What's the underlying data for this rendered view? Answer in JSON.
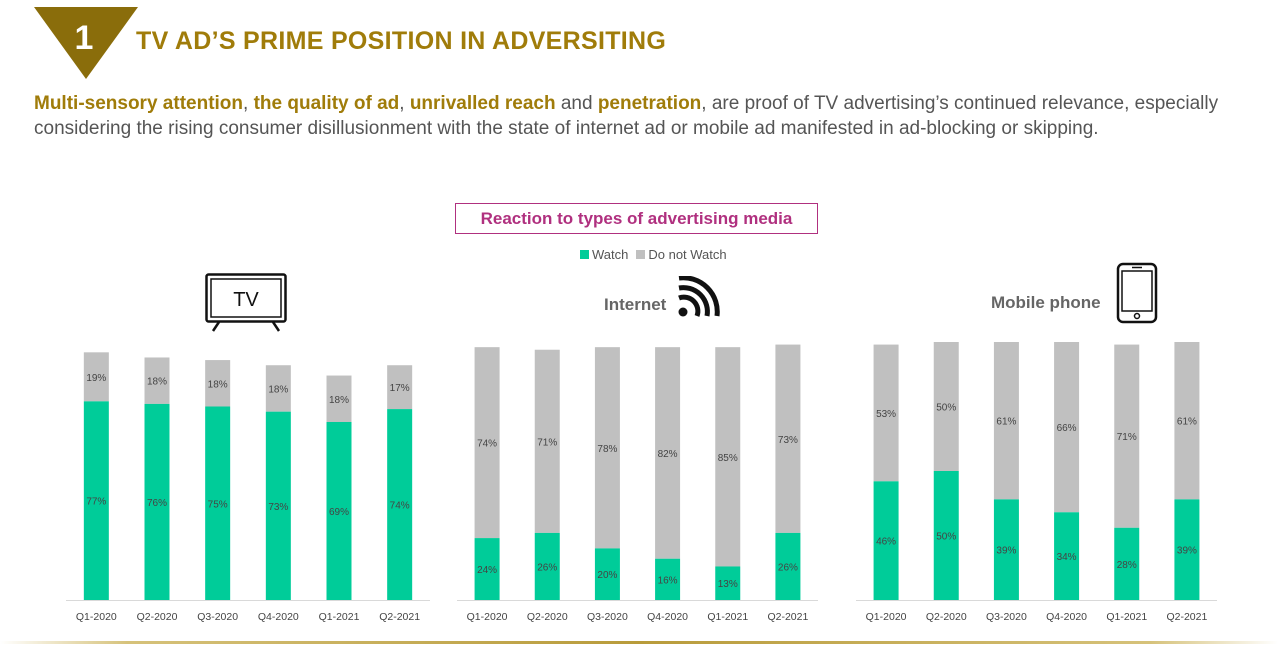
{
  "header": {
    "badge_number": "1",
    "title": "TV AD’S PRIME POSITION IN ADVERSITING"
  },
  "intro": {
    "h1": "Multi-sensory attention",
    "t1": ", ",
    "h2": "the quality of ad",
    "t2": ", ",
    "h3": "unrivalled reach",
    "t3": " and ",
    "h4": "penetration",
    "t4": ", are proof of TV advertising’s continued relevance, especially considering the rising consumer disillusionment with the state of internet ad or mobile ad manifested in ad-blocking or skipping."
  },
  "chart_title": "Reaction to types of advertising media",
  "legend": {
    "watch": "Watch",
    "not_watch": "Do not Watch"
  },
  "colors": {
    "watch": "#00cc99",
    "not_watch": "#c0c0c0",
    "accent": "#a07c0a",
    "title_border": "#b0307f"
  },
  "panels": {
    "tv": {
      "label": "TV",
      "icon": "tv-icon"
    },
    "internet": {
      "label": "Internet",
      "icon": "wifi-icon"
    },
    "mobile": {
      "label": "Mobile phone",
      "icon": "mobile-phone-icon"
    }
  },
  "chart_data": [
    {
      "type": "bar",
      "stacked": true,
      "panel": "TV",
      "categories": [
        "Q1-2020",
        "Q2-2020",
        "Q3-2020",
        "Q4-2020",
        "Q1-2021",
        "Q2-2021"
      ],
      "series": [
        {
          "name": "Watch",
          "values": [
            77,
            76,
            75,
            73,
            69,
            74
          ]
        },
        {
          "name": "Do not Watch",
          "values": [
            19,
            18,
            18,
            18,
            18,
            17
          ]
        }
      ],
      "ylim": [
        0,
        100
      ]
    },
    {
      "type": "bar",
      "stacked": true,
      "panel": "Internet",
      "categories": [
        "Q1-2020",
        "Q2-2020",
        "Q3-2020",
        "Q4-2020",
        "Q1-2021",
        "Q2-2021"
      ],
      "series": [
        {
          "name": "Watch",
          "values": [
            24,
            26,
            20,
            16,
            13,
            26
          ]
        },
        {
          "name": "Do not Watch",
          "values": [
            74,
            71,
            78,
            82,
            85,
            73
          ]
        }
      ],
      "ylim": [
        0,
        100
      ]
    },
    {
      "type": "bar",
      "stacked": true,
      "panel": "Mobile phone",
      "categories": [
        "Q1-2020",
        "Q2-2020",
        "Q3-2020",
        "Q4-2020",
        "Q1-2021",
        "Q2-2021"
      ],
      "series": [
        {
          "name": "Watch",
          "values": [
            46,
            50,
            39,
            34,
            28,
            39
          ]
        },
        {
          "name": "Do not Watch",
          "values": [
            53,
            50,
            61,
            66,
            71,
            61
          ]
        }
      ],
      "ylim": [
        0,
        100
      ]
    }
  ]
}
